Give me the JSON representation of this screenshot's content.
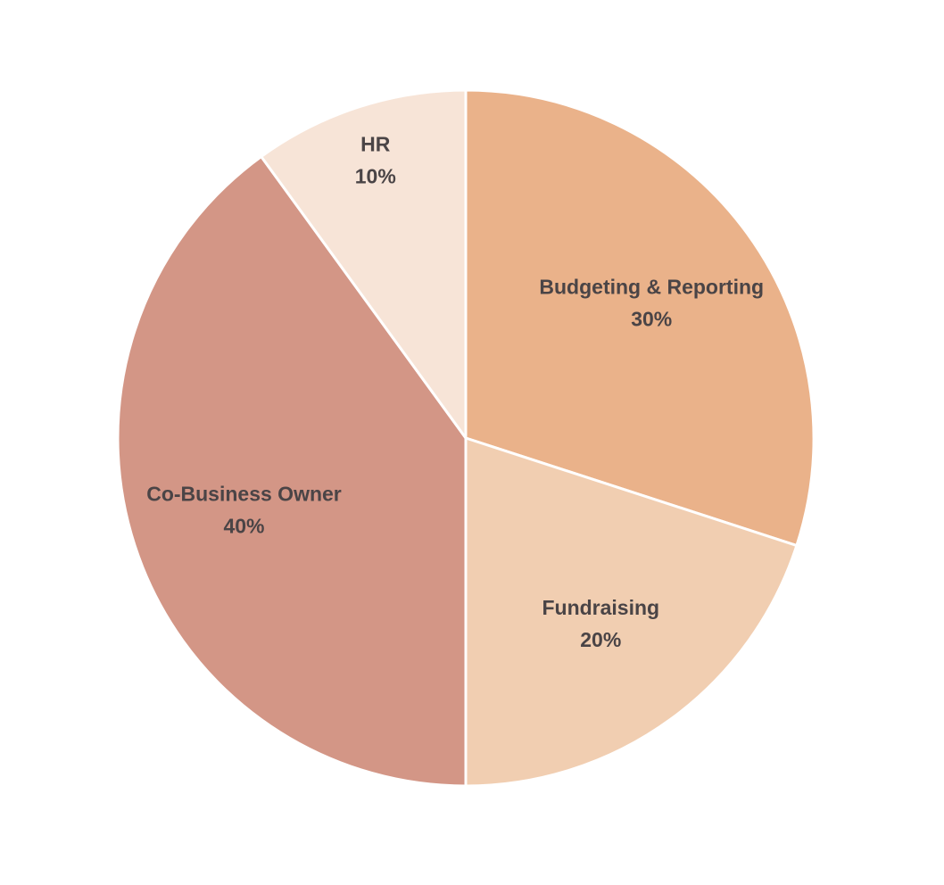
{
  "chart_data": {
    "type": "pie",
    "title": "",
    "start": "top",
    "direction": "clockwise",
    "slices": [
      {
        "label": "Budgeting & Reporting",
        "value": 30,
        "value_label": "30%",
        "color": "#EAB28A"
      },
      {
        "label": "Fundraising",
        "value": 20,
        "value_label": "20%",
        "color": "#F1CEB1"
      },
      {
        "label": "Co-Business Owner",
        "value": 40,
        "value_label": "40%",
        "color": "#D39686"
      },
      {
        "label": "HR",
        "value": 10,
        "value_label": "10%",
        "color": "#F7E4D7"
      }
    ],
    "legend": "none",
    "labels": "inside"
  }
}
